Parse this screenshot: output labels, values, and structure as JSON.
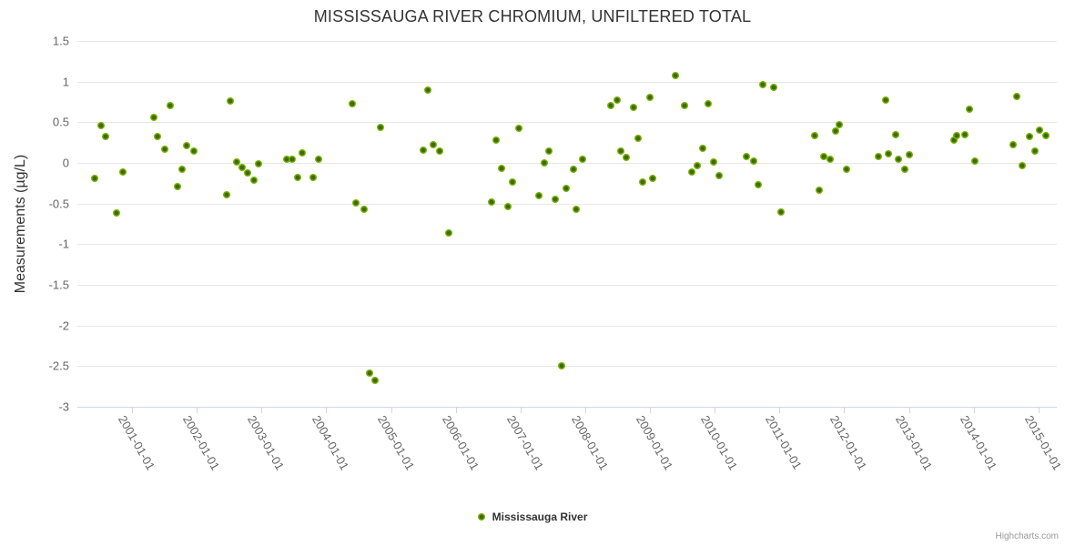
{
  "title": "MISSISSAUGA RIVER CHROMIUM, UNFILTERED TOTAL",
  "legend": {
    "series_label": "Mississauga River"
  },
  "credits": "Highcharts.com",
  "colors": {
    "title": "#333333",
    "axis_label": "#666666",
    "grid": "#e6e6e6",
    "axis_line": "#ccd6eb",
    "point_outer": "#79b306",
    "point_inner": "#3f6b00"
  },
  "chart_data": {
    "type": "scatter",
    "title": "MISSISSAUGA RIVER CHROMIUM, UNFILTERED TOTAL",
    "xlabel": "",
    "ylabel": "Measurements (µg/L)",
    "ylim": [
      -3,
      1.5
    ],
    "xlim": [
      2000.156,
      2015.27
    ],
    "grid": true,
    "legend_position": "bottom-center",
    "yticks": [
      "1.5",
      "1",
      "0.5",
      "0",
      "-0.5",
      "-1",
      "-1.5",
      "-2",
      "-2.5",
      "-3"
    ],
    "xticks": [
      {
        "x": 2001,
        "label": "2001-01-01"
      },
      {
        "x": 2002,
        "label": "2002-01-01"
      },
      {
        "x": 2003,
        "label": "2003-01-01"
      },
      {
        "x": 2004,
        "label": "2004-01-01"
      },
      {
        "x": 2005,
        "label": "2005-01-01"
      },
      {
        "x": 2006,
        "label": "2006-01-01"
      },
      {
        "x": 2007,
        "label": "2007-01-01"
      },
      {
        "x": 2008,
        "label": "2008-01-01"
      },
      {
        "x": 2009,
        "label": "2009-01-01"
      },
      {
        "x": 2010,
        "label": "2010-01-01"
      },
      {
        "x": 2011,
        "label": "2011-01-01"
      },
      {
        "x": 2012,
        "label": "2012-01-01"
      },
      {
        "x": 2013,
        "label": "2013-01-01"
      },
      {
        "x": 2014,
        "label": "2014-01-01"
      },
      {
        "x": 2015,
        "label": "2015-01-01"
      }
    ],
    "series": [
      {
        "name": "Mississauga River",
        "color": "#79b306",
        "points": [
          [
            2000.43,
            -0.19
          ],
          [
            2000.52,
            0.46
          ],
          [
            2000.59,
            0.32
          ],
          [
            2000.76,
            -0.62
          ],
          [
            2000.86,
            -0.11
          ],
          [
            2001.33,
            0.56
          ],
          [
            2001.4,
            0.32
          ],
          [
            2001.51,
            0.17
          ],
          [
            2001.59,
            0.7
          ],
          [
            2001.7,
            -0.29
          ],
          [
            2001.77,
            -0.08
          ],
          [
            2001.85,
            0.21
          ],
          [
            2001.95,
            0.15
          ],
          [
            2002.46,
            -0.39
          ],
          [
            2002.52,
            0.76
          ],
          [
            2002.61,
            0.01
          ],
          [
            2002.7,
            -0.06
          ],
          [
            2002.79,
            -0.12
          ],
          [
            2002.89,
            -0.21
          ],
          [
            2002.96,
            -0.01
          ],
          [
            2003.39,
            0.05
          ],
          [
            2003.47,
            0.05
          ],
          [
            2003.56,
            -0.18
          ],
          [
            2003.63,
            0.12
          ],
          [
            2003.8,
            -0.18
          ],
          [
            2003.88,
            0.05
          ],
          [
            2004.4,
            0.73
          ],
          [
            2004.46,
            -0.49
          ],
          [
            2004.59,
            -0.57
          ],
          [
            2004.67,
            -2.59
          ],
          [
            2004.76,
            -2.67
          ],
          [
            2004.84,
            0.44
          ],
          [
            2005.5,
            0.16
          ],
          [
            2005.57,
            0.89
          ],
          [
            2005.66,
            0.22
          ],
          [
            2005.75,
            0.14
          ],
          [
            2005.89,
            -0.86
          ],
          [
            2006.56,
            -0.48
          ],
          [
            2006.63,
            0.28
          ],
          [
            2006.71,
            -0.07
          ],
          [
            2006.8,
            -0.54
          ],
          [
            2006.87,
            -0.24
          ],
          [
            2006.98,
            0.42
          ],
          [
            2007.29,
            -0.4
          ],
          [
            2007.37,
            0.0
          ],
          [
            2007.44,
            0.15
          ],
          [
            2007.54,
            -0.45
          ],
          [
            2007.63,
            -2.5
          ],
          [
            2007.7,
            -0.31
          ],
          [
            2007.82,
            -0.08
          ],
          [
            2007.86,
            -0.57
          ],
          [
            2007.96,
            0.04
          ],
          [
            2008.39,
            0.7
          ],
          [
            2008.49,
            0.77
          ],
          [
            2008.55,
            0.14
          ],
          [
            2008.63,
            0.07
          ],
          [
            2008.74,
            0.68
          ],
          [
            2008.81,
            0.3
          ],
          [
            2008.89,
            -0.24
          ],
          [
            2009.0,
            0.81
          ],
          [
            2009.04,
            -0.19
          ],
          [
            2009.39,
            1.08
          ],
          [
            2009.53,
            0.71
          ],
          [
            2009.65,
            -0.11
          ],
          [
            2009.73,
            -0.03
          ],
          [
            2009.82,
            0.18
          ],
          [
            2009.9,
            0.73
          ],
          [
            2009.99,
            0.01
          ],
          [
            2010.07,
            -0.16
          ],
          [
            2010.49,
            0.08
          ],
          [
            2010.6,
            0.02
          ],
          [
            2010.67,
            -0.27
          ],
          [
            2010.74,
            0.96
          ],
          [
            2010.91,
            0.93
          ],
          [
            2011.02,
            -0.6
          ],
          [
            2011.55,
            0.34
          ],
          [
            2011.61,
            -0.34
          ],
          [
            2011.68,
            0.08
          ],
          [
            2011.78,
            0.05
          ],
          [
            2011.87,
            0.39
          ],
          [
            2011.93,
            0.47
          ],
          [
            2012.03,
            -0.08
          ],
          [
            2012.53,
            0.08
          ],
          [
            2012.64,
            0.77
          ],
          [
            2012.69,
            0.11
          ],
          [
            2012.8,
            0.35
          ],
          [
            2012.84,
            0.05
          ],
          [
            2012.94,
            -0.08
          ],
          [
            2013.01,
            0.1
          ],
          [
            2013.69,
            0.28
          ],
          [
            2013.74,
            0.34
          ],
          [
            2013.87,
            0.35
          ],
          [
            2013.94,
            0.66
          ],
          [
            2014.02,
            0.02
          ],
          [
            2014.61,
            0.22
          ],
          [
            2014.67,
            0.82
          ],
          [
            2014.75,
            -0.03
          ],
          [
            2014.86,
            0.32
          ],
          [
            2014.95,
            0.15
          ],
          [
            2015.02,
            0.4
          ],
          [
            2015.12,
            0.34
          ]
        ]
      }
    ]
  }
}
